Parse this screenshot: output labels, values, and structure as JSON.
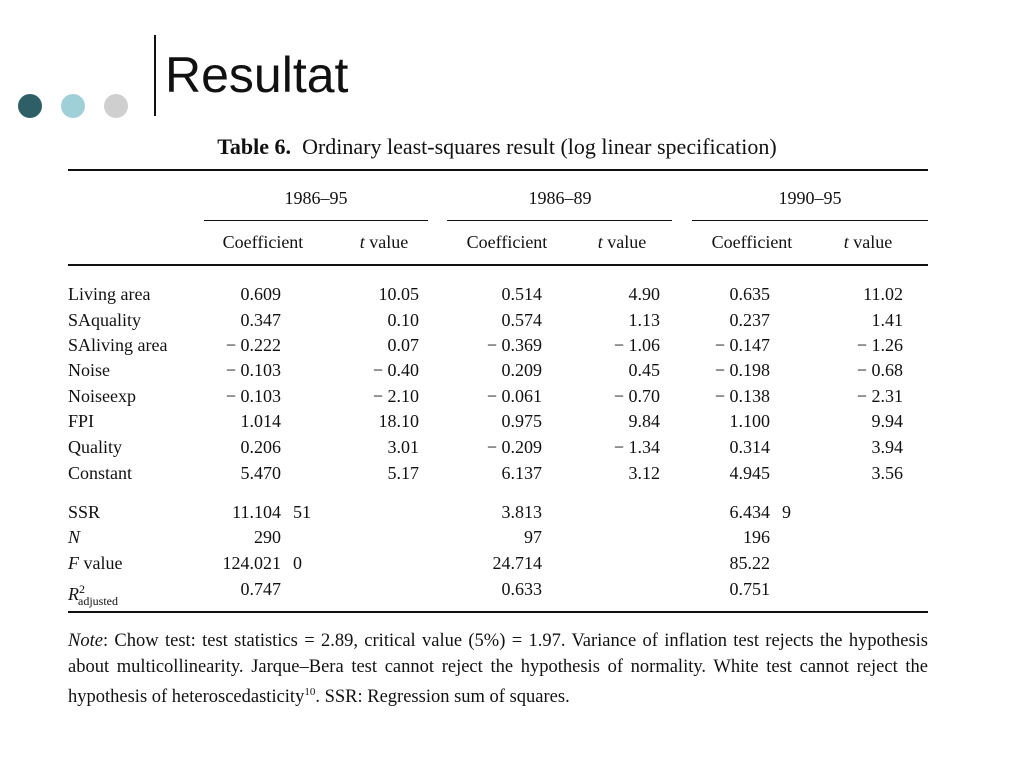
{
  "header": {
    "title": "Resultat"
  },
  "table": {
    "caption_label": "Table 6.",
    "caption": "Ordinary least-squares result (log linear specification)",
    "groups": [
      "1986–95",
      "1986–89",
      "1990–95"
    ],
    "columns": [
      {
        "text": "Coefficient"
      },
      {
        "italic": "t",
        "text": "value"
      },
      {
        "text": "Coefficient"
      },
      {
        "italic": "t",
        "text": "value"
      },
      {
        "text": "Coefficient"
      },
      {
        "italic": "t",
        "text": "value"
      }
    ],
    "rows": [
      {
        "label": "Living area",
        "cells": [
          "0.609",
          "10.05",
          "0.514",
          "4.90",
          "0.635",
          "11.02"
        ]
      },
      {
        "label": "SAquality",
        "cells": [
          "0.347",
          "0.10",
          "0.574",
          "1.13",
          "0.237",
          "1.41"
        ]
      },
      {
        "label": "SAliving area",
        "cells": [
          "− 0.222",
          "0.07",
          "− 0.369",
          "− 1.06",
          "− 0.147",
          "− 1.26"
        ]
      },
      {
        "label": "Noise",
        "cells": [
          "− 0.103",
          "− 0.40",
          "0.209",
          "0.45",
          "− 0.198",
          "− 0.68"
        ]
      },
      {
        "label": "Noiseexp",
        "cells": [
          "− 0.103",
          "− 2.10",
          "− 0.061",
          "− 0.70",
          "− 0.138",
          "− 2.31"
        ]
      },
      {
        "label": "FPI",
        "cells": [
          "1.014",
          "18.10",
          "0.975",
          "9.84",
          "1.100",
          "9.94"
        ]
      },
      {
        "label": "Quality",
        "cells": [
          "0.206",
          "3.01",
          "− 0.209",
          "− 1.34",
          "0.314",
          "3.94"
        ]
      },
      {
        "label": "Constant",
        "cells": [
          "5.470",
          "5.17",
          "6.137",
          "3.12",
          "4.945",
          "3.56"
        ]
      }
    ],
    "stats": [
      {
        "label": {
          "text": "SSR"
        },
        "cells": [
          {
            "value": "11.104",
            "extra": "51"
          },
          {
            "value": "3.813"
          },
          {
            "value": "6.434",
            "extra": "9"
          }
        ]
      },
      {
        "label": {
          "italic": "N"
        },
        "cells": [
          {
            "value": "290"
          },
          {
            "value": "97"
          },
          {
            "value": "196"
          }
        ]
      },
      {
        "label": {
          "italic": "F",
          "text": "value"
        },
        "cells": [
          {
            "value": "124.021",
            "extra": "0"
          },
          {
            "value": "24.714"
          },
          {
            "value": "85.22"
          }
        ]
      },
      {
        "label": {
          "italic": "R",
          "sup": "2",
          "sub": "adjusted"
        },
        "cells": [
          {
            "value": "0.747"
          },
          {
            "value": "0.633"
          },
          {
            "value": "0.751"
          }
        ]
      }
    ],
    "note": [
      {
        "italic": "Note"
      },
      {
        "text": ": Chow test: test statistics = 2.89, critical value (5%) = 1.97. Variance of inflation test rejects the hypothesis about multicollinearity. Jarque–Bera test cannot reject the hypothesis of normality. White test cannot reject the hypothesis of heteroscedasticity"
      },
      {
        "sup": "10"
      },
      {
        "text": ". SSR: Regression sum of squares."
      }
    ]
  }
}
